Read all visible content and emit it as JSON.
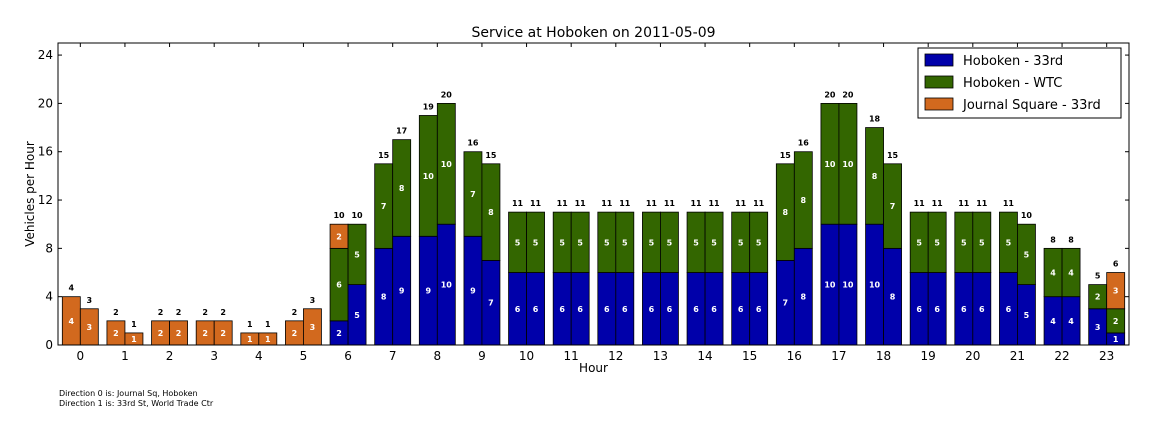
{
  "chart_data": {
    "type": "bar",
    "stacked": true,
    "grouped_by": "direction",
    "title": "Service at Hoboken on 2011-05-09",
    "xlabel": "Hour",
    "ylabel": "Vehicles per Hour",
    "ylim": [
      0,
      25
    ],
    "yticks": [
      0,
      4,
      8,
      12,
      16,
      20,
      24
    ],
    "categories": [
      "0",
      "1",
      "2",
      "3",
      "4",
      "5",
      "6",
      "7",
      "8",
      "9",
      "10",
      "11",
      "12",
      "13",
      "14",
      "15",
      "16",
      "17",
      "18",
      "19",
      "20",
      "21",
      "22",
      "23"
    ],
    "legend_position": "top-right",
    "series": [
      {
        "name": "Hoboken - 33rd",
        "color": "#0000aa",
        "direction0": [
          0,
          0,
          0,
          0,
          0,
          0,
          2,
          8,
          9,
          9,
          6,
          6,
          6,
          6,
          6,
          6,
          7,
          10,
          10,
          6,
          6,
          6,
          4,
          3
        ],
        "direction1": [
          0,
          0,
          0,
          0,
          0,
          0,
          5,
          9,
          10,
          7,
          6,
          6,
          6,
          6,
          6,
          6,
          8,
          10,
          8,
          6,
          6,
          5,
          4,
          1
        ]
      },
      {
        "name": "Hoboken - WTC",
        "color": "#336600",
        "direction0": [
          0,
          0,
          0,
          0,
          0,
          0,
          6,
          7,
          10,
          7,
          5,
          5,
          5,
          5,
          5,
          5,
          8,
          10,
          8,
          5,
          5,
          5,
          4,
          2
        ],
        "direction1": [
          0,
          0,
          0,
          0,
          0,
          0,
          5,
          8,
          10,
          8,
          5,
          5,
          5,
          5,
          5,
          5,
          8,
          10,
          7,
          5,
          5,
          5,
          4,
          2
        ]
      },
      {
        "name": "Journal Square - 33rd",
        "color": "#d2691e",
        "direction0": [
          4,
          2,
          2,
          2,
          1,
          2,
          2,
          0,
          0,
          0,
          0,
          0,
          0,
          0,
          0,
          0,
          0,
          0,
          0,
          0,
          0,
          0,
          0,
          0
        ],
        "direction1": [
          3,
          1,
          2,
          2,
          1,
          3,
          0,
          0,
          0,
          0,
          0,
          0,
          0,
          0,
          0,
          0,
          0,
          0,
          0,
          0,
          0,
          0,
          0,
          3
        ]
      }
    ],
    "totals": {
      "direction0": [
        4,
        2,
        2,
        2,
        1,
        2,
        10,
        15,
        19,
        16,
        11,
        11,
        11,
        11,
        11,
        11,
        15,
        20,
        18,
        11,
        11,
        11,
        8,
        5
      ],
      "direction1": [
        3,
        1,
        2,
        2,
        1,
        3,
        10,
        17,
        20,
        15,
        11,
        11,
        11,
        11,
        11,
        11,
        16,
        20,
        15,
        11,
        11,
        10,
        8,
        6
      ]
    }
  },
  "footnotes": {
    "line1": "Direction 0 is: Journal Sq, Hoboken",
    "line2": "Direction 1 is: 33rd St, World Trade Ctr"
  }
}
